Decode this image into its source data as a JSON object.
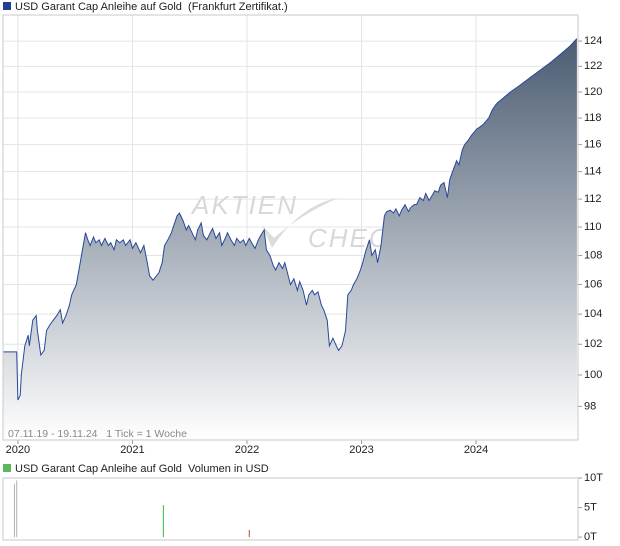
{
  "chart_data": [
    {
      "type": "area",
      "title": "USD Garant Cap Anleihe auf Gold  (Frankfurt Zertifikat.)",
      "annotation": "07.11.19 - 19.11.24   1 Tick = 1 Woche",
      "watermark": [
        "AKTIEN",
        "CHECK"
      ],
      "color": "#27489a",
      "legend_color": "#1f3f9a",
      "fill_top": "#4b5c72",
      "log_scale": true,
      "grid": true,
      "xlim": [
        2019.87,
        2024.89
      ],
      "xticks": [
        2020,
        2021,
        2022,
        2023,
        2024
      ],
      "ylim": [
        95.9,
        126.1
      ],
      "yticks": [
        98,
        100,
        102,
        104,
        106,
        108,
        110,
        112,
        114,
        116,
        118,
        120,
        122,
        124
      ],
      "x": [
        2019.87,
        2019.99,
        2020.0,
        2020.02,
        2020.03,
        2020.06,
        2020.09,
        2020.1,
        2020.13,
        2020.16,
        2020.17,
        2020.2,
        2020.23,
        2020.25,
        2020.28,
        2020.31,
        2020.34,
        2020.37,
        2020.39,
        2020.42,
        2020.45,
        2020.47,
        2020.51,
        2020.54,
        2020.57,
        2020.59,
        2020.61,
        2020.63,
        2020.66,
        2020.68,
        2020.71,
        2020.73,
        2020.76,
        2020.79,
        2020.81,
        2020.84,
        2020.86,
        2020.89,
        2020.92,
        2020.94,
        2020.98,
        2021.0,
        2021.03,
        2021.07,
        2021.1,
        2021.13,
        2021.15,
        2021.18,
        2021.21,
        2021.23,
        2021.26,
        2021.28,
        2021.31,
        2021.34,
        2021.36,
        2021.39,
        2021.41,
        2021.44,
        2021.47,
        2021.49,
        2021.52,
        2021.55,
        2021.57,
        2021.6,
        2021.62,
        2021.65,
        2021.68,
        2021.7,
        2021.73,
        2021.76,
        2021.78,
        2021.81,
        2021.83,
        2021.86,
        2021.89,
        2021.91,
        2021.94,
        2021.97,
        2021.99,
        2022.02,
        2022.04,
        2022.07,
        2022.1,
        2022.12,
        2022.15,
        2022.17,
        2022.2,
        2022.23,
        2022.25,
        2022.28,
        2022.31,
        2022.33,
        2022.36,
        2022.38,
        2022.41,
        2022.44,
        2022.46,
        2022.49,
        2022.52,
        2022.54,
        2022.57,
        2022.59,
        2022.62,
        2022.65,
        2022.67,
        2022.7,
        2022.72,
        2022.75,
        2022.78,
        2022.8,
        2022.83,
        2022.86,
        2022.88,
        2022.91,
        2022.93,
        2022.96,
        2022.99,
        2023.01,
        2023.04,
        2023.07,
        2023.09,
        2023.12,
        2023.14,
        2023.17,
        2023.2,
        2023.22,
        2023.25,
        2023.28,
        2023.3,
        2023.33,
        2023.35,
        2023.38,
        2023.41,
        2023.43,
        2023.46,
        2023.48,
        2023.51,
        2023.54,
        2023.56,
        2023.59,
        2023.62,
        2023.64,
        2023.67,
        2023.69,
        2023.72,
        2023.75,
        2023.77,
        2023.8,
        2023.83,
        2023.85,
        2023.88,
        2023.9,
        2023.93,
        2023.96,
        2023.98,
        2024.01,
        2024.03,
        2024.06,
        2024.09,
        2024.11,
        2024.14,
        2024.17,
        2024.19,
        2024.22,
        2024.3,
        2024.38,
        2024.47,
        2024.56,
        2024.65,
        2024.73,
        2024.82,
        2024.88
      ],
      "values": [
        101.5,
        101.5,
        98.4,
        98.7,
        100.0,
        101.9,
        102.6,
        101.9,
        103.6,
        103.9,
        102.9,
        101.3,
        101.6,
        102.9,
        103.3,
        103.6,
        103.9,
        104.3,
        103.4,
        103.9,
        104.6,
        105.3,
        106.0,
        107.3,
        108.7,
        109.6,
        109.1,
        108.7,
        109.3,
        108.9,
        109.1,
        108.7,
        109.2,
        108.7,
        108.9,
        108.4,
        109.1,
        108.9,
        109.1,
        108.7,
        109.1,
        108.5,
        108.9,
        108.2,
        108.7,
        107.5,
        106.6,
        106.3,
        106.6,
        106.8,
        107.5,
        108.7,
        109.1,
        109.6,
        110.1,
        110.8,
        111.0,
        110.5,
        109.8,
        110.1,
        109.6,
        109.1,
        109.8,
        110.3,
        109.4,
        109.1,
        109.6,
        109.9,
        109.2,
        109.6,
        108.7,
        109.2,
        109.6,
        109.1,
        108.7,
        109.2,
        108.9,
        109.1,
        108.7,
        109.2,
        108.9,
        108.5,
        109.1,
        109.4,
        109.8,
        108.4,
        108.0,
        107.3,
        107.0,
        107.5,
        107.1,
        107.5,
        106.6,
        106.0,
        106.4,
        105.6,
        106.2,
        105.6,
        104.6,
        105.3,
        105.6,
        105.3,
        105.5,
        104.6,
        104.3,
        103.6,
        101.9,
        102.4,
        101.9,
        101.6,
        101.9,
        102.9,
        105.3,
        105.6,
        106.0,
        106.4,
        107.0,
        107.5,
        108.4,
        109.1,
        108.0,
        108.4,
        107.5,
        108.7,
        110.8,
        111.1,
        111.2,
        111.0,
        111.3,
        110.8,
        111.2,
        111.6,
        111.1,
        111.4,
        111.6,
        111.6,
        112.1,
        111.9,
        112.4,
        111.9,
        112.3,
        112.6,
        112.5,
        113.0,
        113.2,
        112.1,
        113.4,
        114.1,
        114.8,
        114.5,
        115.6,
        116.0,
        116.3,
        116.7,
        116.9,
        117.2,
        117.3,
        117.5,
        117.8,
        118.0,
        118.6,
        119.0,
        119.2,
        119.4,
        120.0,
        120.5,
        121.1,
        121.7,
        122.3,
        122.9,
        123.6,
        124.2
      ]
    },
    {
      "type": "bar",
      "title": "USD Garant Cap Anleihe auf Gold  Volumen in USD",
      "legend_color": "#5cb85c",
      "xlim": [
        2019.87,
        2024.89
      ],
      "ylim": [
        -500,
        10000
      ],
      "yticks": [
        {
          "value": 0,
          "label": "0T"
        },
        {
          "value": 5000,
          "label": "5T"
        },
        {
          "value": 10000,
          "label": "10T"
        }
      ],
      "x": [
        2019.97,
        2019.99,
        2021.27,
        2022.02
      ],
      "values": [
        9000,
        9600,
        5400,
        1200
      ],
      "colors": [
        "#b0b0b0",
        "#b0b0b0",
        "#2fb84a",
        "#d04040"
      ]
    }
  ]
}
